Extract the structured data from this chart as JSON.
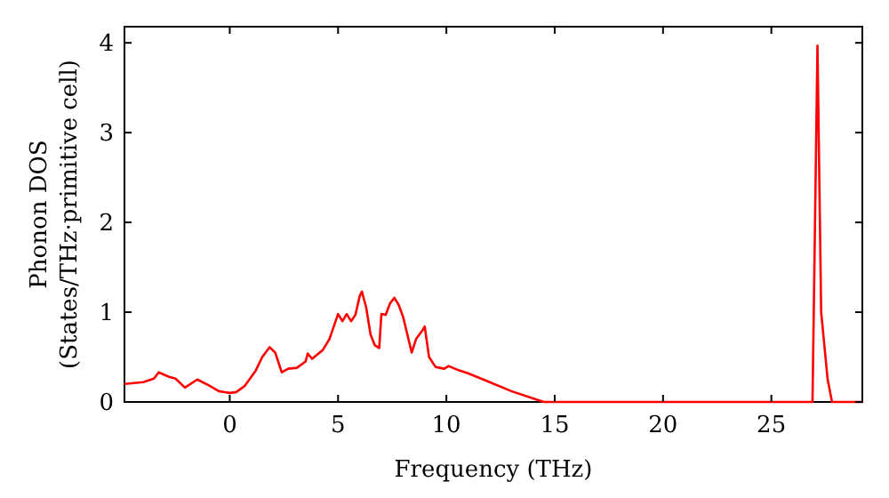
{
  "chart_data": {
    "type": "line",
    "xlabel": "Frequency (THz)",
    "ylabel": "Phonon DOS\n(States/THz·primitive cell)",
    "x": [
      -4.86,
      -4,
      -3.5,
      -3.28,
      -2.8,
      -2.5,
      -2.07,
      -1.5,
      -1.0,
      -0.5,
      0,
      0.3,
      0.7,
      1.2,
      1.5,
      1.84,
      2.1,
      2.4,
      2.7,
      3.1,
      3.5,
      3.6,
      3.8,
      4.3,
      4.6,
      5.0,
      5.2,
      5.4,
      5.6,
      5.8,
      6.0,
      6.1,
      6.3,
      6.5,
      6.7,
      6.9,
      7.0,
      7.2,
      7.4,
      7.6,
      7.8,
      8.0,
      8.2,
      8.4,
      8.6,
      8.9,
      9.0,
      9.2,
      9.5,
      9.9,
      10.1,
      10.5,
      11,
      12,
      13,
      14,
      14.5,
      26.9,
      27.13,
      27.3,
      27.6,
      27.8,
      29.2
    ],
    "series": [
      {
        "color": "#ff0000",
        "values": [
          0.2,
          0.22,
          0.26,
          0.33,
          0.28,
          0.26,
          0.16,
          0.25,
          0.19,
          0.12,
          0.1,
          0.11,
          0.18,
          0.35,
          0.5,
          0.61,
          0.55,
          0.33,
          0.37,
          0.38,
          0.45,
          0.54,
          0.48,
          0.58,
          0.7,
          0.98,
          0.9,
          0.98,
          0.9,
          0.97,
          1.18,
          1.23,
          1.05,
          0.75,
          0.63,
          0.6,
          0.98,
          0.97,
          1.1,
          1.16,
          1.08,
          0.95,
          0.75,
          0.55,
          0.7,
          0.8,
          0.84,
          0.5,
          0.39,
          0.37,
          0.4,
          0.36,
          0.32,
          0.22,
          0.12,
          0.04,
          0,
          0,
          3.97,
          1.0,
          0.25,
          0,
          0
        ]
      }
    ],
    "xlim": [
      -4.86,
      29.2
    ],
    "ylim": [
      0,
      4.18
    ],
    "xticks": [
      0,
      5,
      10,
      15,
      20,
      25
    ],
    "yticks": [
      0,
      1,
      2,
      3,
      4
    ],
    "line_style": "solid",
    "marker": "none",
    "grid": false
  }
}
